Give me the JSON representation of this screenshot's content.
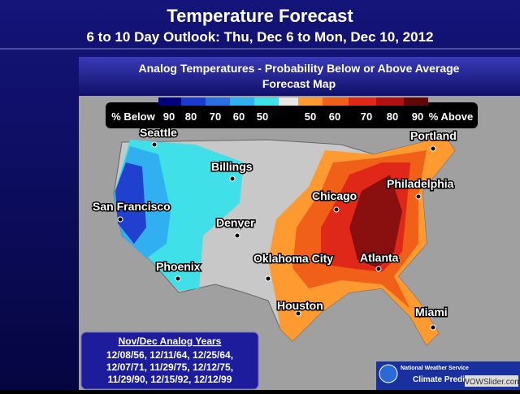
{
  "header": {
    "title": "Temperature Forecast",
    "subtitle": "6 to 10 Day Outlook: Thu, Dec 6 to Mon, Dec 10, 2012"
  },
  "panel": {
    "title_line1": "Analog Temperatures  -  Probability Below or Above Average",
    "title_line2": "Forecast Map"
  },
  "legend": {
    "below_label": "% Below",
    "below_levels": [
      "90",
      "80",
      "70",
      "60",
      "50"
    ],
    "above_levels": [
      "50",
      "60",
      "70",
      "80",
      "90"
    ],
    "above_label": "% Above"
  },
  "cities": [
    "Seattle",
    "Portland",
    "Billings",
    "Philadelphia",
    "San Francisco",
    "Chicago",
    "Denver",
    "Oklahoma City",
    "Atlanta",
    "Phoenix",
    "Houston",
    "Miami"
  ],
  "analog_box": {
    "title": "Nov/Dec Analog Years",
    "lines": [
      "12/08/56, 12/11/64, 12/25/64,",
      "12/07/71, 11/29/75, 12/12/75,",
      "11/29/90, 12/15/92, 12/12/99"
    ]
  },
  "logo": {
    "line1": "National Weather Service",
    "line2": "Climate Prediction Center"
  },
  "watermark": "WOWSlider.com"
}
